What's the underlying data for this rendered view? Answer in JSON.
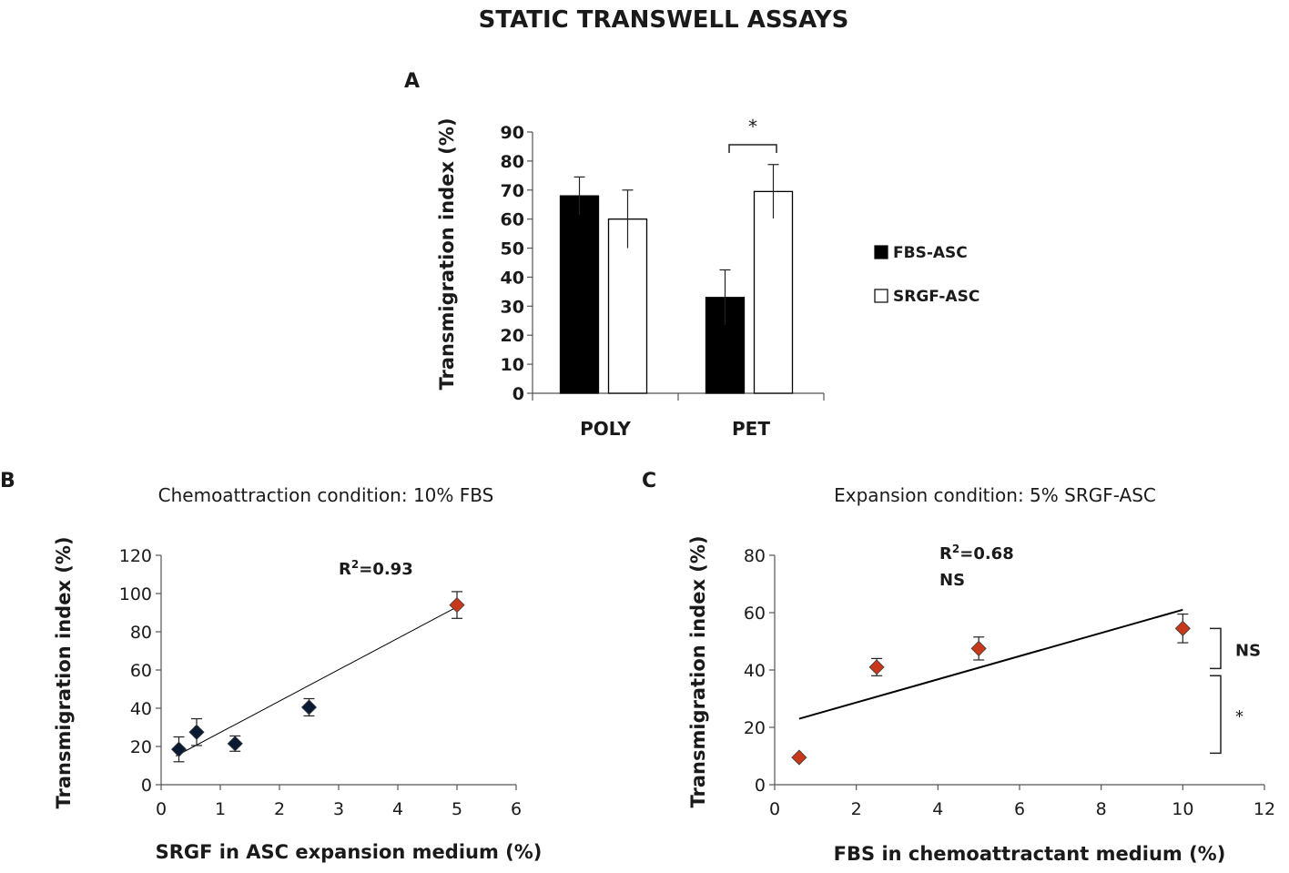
{
  "figure_title": "STATIC TRANSWELL ASSAYS",
  "panel_letters": {
    "a": "A",
    "b": "B",
    "c": "C"
  },
  "colors": {
    "fbs_bar": "#000000",
    "srgf_bar": "#ffffff",
    "marker_dark": "#0b1a33",
    "marker_red": "#c8391b",
    "axis": "#555555"
  },
  "chart_data": [
    {
      "panel": "A",
      "type": "bar",
      "title": "",
      "ylabel": "Transmigration index (%)",
      "xlabel": "",
      "ylim": [
        0,
        90
      ],
      "yticks": [
        "0",
        "10",
        "20",
        "30",
        "40",
        "50",
        "60",
        "70",
        "80",
        "90"
      ],
      "categories": [
        "POLY",
        "PET"
      ],
      "series": [
        {
          "name": "FBS-ASC",
          "values": [
            68,
            33
          ],
          "errors": [
            6.5,
            9.5
          ]
        },
        {
          "name": "SRGF-ASC",
          "values": [
            60,
            69.5
          ],
          "errors": [
            10,
            9.3
          ]
        }
      ],
      "significance": {
        "label": "*",
        "category": "PET"
      },
      "legend": [
        "FBS-ASC",
        "SRGF-ASC"
      ],
      "legend_position": "right"
    },
    {
      "panel": "B",
      "type": "scatter",
      "title": "Chemoattraction condition: 10% FBS",
      "xlabel": "SRGF in ASC expansion medium (%)",
      "ylabel": "Transmigration index (%)",
      "xlim": [
        0,
        6
      ],
      "ylim": [
        0,
        120
      ],
      "xticks": [
        "0",
        "1",
        "2",
        "3",
        "4",
        "5",
        "6"
      ],
      "yticks": [
        "0",
        "20",
        "40",
        "60",
        "80",
        "100",
        "120"
      ],
      "points": [
        {
          "x": 0.3,
          "y": 18.5,
          "err": 6.5,
          "color": "dark"
        },
        {
          "x": 0.6,
          "y": 27.5,
          "err": 7.0,
          "color": "dark"
        },
        {
          "x": 1.25,
          "y": 21.5,
          "err": 4.0,
          "color": "dark"
        },
        {
          "x": 2.5,
          "y": 40.5,
          "err": 4.5,
          "color": "dark"
        },
        {
          "x": 5.0,
          "y": 94,
          "err": 7.0,
          "color": "red"
        }
      ],
      "trendline": {
        "x": [
          0.25,
          5.0
        ],
        "y": [
          15,
          93
        ]
      },
      "annotation": {
        "r2_prefix": "R",
        "r2_sup": "2",
        "r2_value": "=0.93"
      }
    },
    {
      "panel": "C",
      "type": "scatter",
      "title": "Expansion condition: 5% SRGF-ASC",
      "xlabel": "FBS in chemoattractant medium (%)",
      "ylabel": "Transmigration index (%)",
      "xlim": [
        0,
        12
      ],
      "ylim": [
        0,
        80
      ],
      "xticks": [
        "0",
        "2",
        "4",
        "6",
        "8",
        "10",
        "12"
      ],
      "yticks": [
        "0",
        "20",
        "40",
        "60",
        "80"
      ],
      "points": [
        {
          "x": 0.6,
          "y": 9.5,
          "err": 0,
          "color": "red"
        },
        {
          "x": 2.5,
          "y": 41,
          "err": 3.0,
          "color": "red"
        },
        {
          "x": 5.0,
          "y": 47.5,
          "err": 4.0,
          "color": "red"
        },
        {
          "x": 10.0,
          "y": 54.5,
          "err": 5.0,
          "color": "red"
        }
      ],
      "trendline": {
        "x": [
          0.6,
          10.0
        ],
        "y": [
          23,
          61
        ]
      },
      "annotation": {
        "r2_prefix": "R",
        "r2_sup": "2",
        "r2_value": "=0.68",
        "ns_label": "NS"
      },
      "brackets": [
        {
          "label": "NS",
          "y_from": 40.5,
          "y_to": 54.5
        },
        {
          "label": "*",
          "y_from": 11,
          "y_to": 38
        }
      ]
    }
  ]
}
